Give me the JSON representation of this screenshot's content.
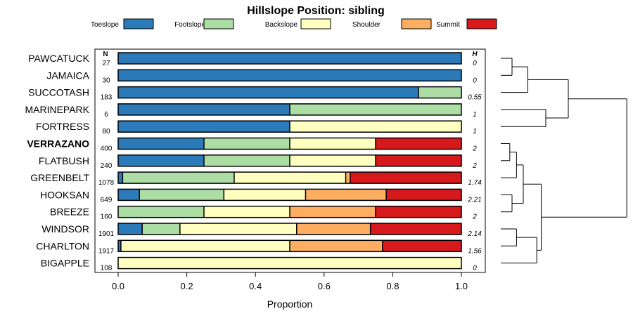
{
  "chart_data": {
    "type": "bar",
    "orientation": "horizontal-stacked",
    "title": "Hillslope Position: sibling",
    "xlabel": "Proportion",
    "ylabel": "",
    "xlim": [
      0,
      1
    ],
    "xticks": [
      "0.0",
      "0.2",
      "0.4",
      "0.6",
      "0.8",
      "1.0"
    ],
    "n_header": "N",
    "h_header": "H",
    "legend": [
      {
        "name": "Toeslope",
        "color": "#2b7bba"
      },
      {
        "name": "Footslope",
        "color": "#abdda4"
      },
      {
        "name": "Backslope",
        "color": "#ffffbf"
      },
      {
        "name": "Shoulder",
        "color": "#fdae61"
      },
      {
        "name": "Summit",
        "color": "#d7191c"
      }
    ],
    "highlight": "VERRAZANO",
    "rows": [
      {
        "name": "PAWCATUCK",
        "n": "27",
        "h": "0",
        "values": [
          1.0,
          0,
          0,
          0,
          0
        ]
      },
      {
        "name": "JAMAICA",
        "n": "30",
        "h": "0",
        "values": [
          1.0,
          0,
          0,
          0,
          0
        ]
      },
      {
        "name": "SUCCOTASH",
        "n": "183",
        "h": "0.55",
        "values": [
          0.875,
          0.125,
          0,
          0,
          0
        ]
      },
      {
        "name": "MARINEPARK",
        "n": "6",
        "h": "1",
        "values": [
          0.5,
          0.5,
          0,
          0,
          0
        ]
      },
      {
        "name": "FORTRESS",
        "n": "80",
        "h": "1",
        "values": [
          0.5,
          0,
          0.5,
          0,
          0
        ]
      },
      {
        "name": "VERRAZANO",
        "n": "400",
        "h": "2",
        "values": [
          0.25,
          0.25,
          0.25,
          0,
          0.25
        ]
      },
      {
        "name": "FLATBUSH",
        "n": "240",
        "h": "2",
        "values": [
          0.25,
          0.25,
          0.25,
          0,
          0.25
        ]
      },
      {
        "name": "GREENBELT",
        "n": "1078",
        "h": "1.74",
        "values": [
          0.013,
          0.325,
          0.325,
          0.013,
          0.324
        ]
      },
      {
        "name": "HOOKSAN",
        "n": "649",
        "h": "2.21",
        "values": [
          0.062,
          0.246,
          0.238,
          0.235,
          0.219
        ]
      },
      {
        "name": "BREEZE",
        "n": "160",
        "h": "2",
        "values": [
          0,
          0.25,
          0.25,
          0.25,
          0.25
        ]
      },
      {
        "name": "WINDSOR",
        "n": "1901",
        "h": "2.14",
        "values": [
          0.07,
          0.11,
          0.34,
          0.215,
          0.265
        ]
      },
      {
        "name": "CHARLTON",
        "n": "1917",
        "h": "1.56",
        "values": [
          0.008,
          0,
          0.492,
          0.27,
          0.23
        ]
      },
      {
        "name": "BIGAPPLE",
        "n": "108",
        "h": "0",
        "values": [
          0,
          0,
          1.0,
          0,
          0
        ]
      }
    ],
    "dendrogram": {
      "merges": [
        [
          0,
          1,
          0.05
        ],
        [
          -1,
          2,
          0.12
        ],
        [
          5,
          6,
          0.04
        ],
        [
          -3,
          7,
          0.07
        ],
        [
          8,
          9,
          0.05
        ],
        [
          -5,
          -4,
          0.1
        ],
        [
          10,
          11,
          0.07
        ],
        [
          -7,
          12,
          0.16
        ],
        [
          -6,
          -8,
          0.18
        ],
        [
          3,
          4,
          0.2
        ],
        [
          -2,
          -10,
          0.3
        ],
        [
          -11,
          -9,
          0.56
        ]
      ]
    }
  }
}
